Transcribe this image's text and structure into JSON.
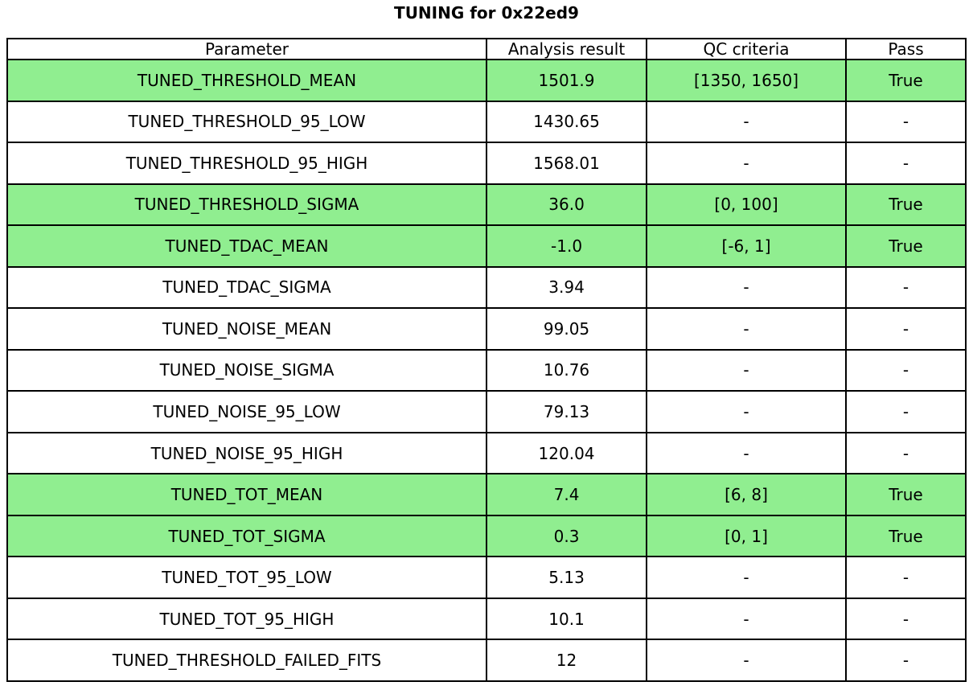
{
  "title": "TUNING for 0x22ed9",
  "colors": {
    "highlight": "#90ee90",
    "row_default": "#ffffff",
    "border": "#000000",
    "text": "#000000"
  },
  "chart_data": {
    "type": "table",
    "title": "TUNING for 0x22ed9",
    "columns": [
      "Parameter",
      "Analysis result",
      "QC criteria",
      "Pass"
    ],
    "rows": [
      {
        "parameter": "TUNED_THRESHOLD_MEAN",
        "analysis_result": "1501.9",
        "qc_criteria": "[1350, 1650]",
        "pass": "True",
        "highlighted": true
      },
      {
        "parameter": "TUNED_THRESHOLD_95_LOW",
        "analysis_result": "1430.65",
        "qc_criteria": "-",
        "pass": "-",
        "highlighted": false
      },
      {
        "parameter": "TUNED_THRESHOLD_95_HIGH",
        "analysis_result": "1568.01",
        "qc_criteria": "-",
        "pass": "-",
        "highlighted": false
      },
      {
        "parameter": "TUNED_THRESHOLD_SIGMA",
        "analysis_result": "36.0",
        "qc_criteria": "[0, 100]",
        "pass": "True",
        "highlighted": true
      },
      {
        "parameter": "TUNED_TDAC_MEAN",
        "analysis_result": "-1.0",
        "qc_criteria": "[-6, 1]",
        "pass": "True",
        "highlighted": true
      },
      {
        "parameter": "TUNED_TDAC_SIGMA",
        "analysis_result": "3.94",
        "qc_criteria": "-",
        "pass": "-",
        "highlighted": false
      },
      {
        "parameter": "TUNED_NOISE_MEAN",
        "analysis_result": "99.05",
        "qc_criteria": "-",
        "pass": "-",
        "highlighted": false
      },
      {
        "parameter": "TUNED_NOISE_SIGMA",
        "analysis_result": "10.76",
        "qc_criteria": "-",
        "pass": "-",
        "highlighted": false
      },
      {
        "parameter": "TUNED_NOISE_95_LOW",
        "analysis_result": "79.13",
        "qc_criteria": "-",
        "pass": "-",
        "highlighted": false
      },
      {
        "parameter": "TUNED_NOISE_95_HIGH",
        "analysis_result": "120.04",
        "qc_criteria": "-",
        "pass": "-",
        "highlighted": false
      },
      {
        "parameter": "TUNED_TOT_MEAN",
        "analysis_result": "7.4",
        "qc_criteria": "[6, 8]",
        "pass": "True",
        "highlighted": true
      },
      {
        "parameter": "TUNED_TOT_SIGMA",
        "analysis_result": "0.3",
        "qc_criteria": "[0, 1]",
        "pass": "True",
        "highlighted": true
      },
      {
        "parameter": "TUNED_TOT_95_LOW",
        "analysis_result": "5.13",
        "qc_criteria": "-",
        "pass": "-",
        "highlighted": false
      },
      {
        "parameter": "TUNED_TOT_95_HIGH",
        "analysis_result": "10.1",
        "qc_criteria": "-",
        "pass": "-",
        "highlighted": false
      },
      {
        "parameter": "TUNED_THRESHOLD_FAILED_FITS",
        "analysis_result": "12",
        "qc_criteria": "-",
        "pass": "-",
        "highlighted": false
      }
    ],
    "layout": {
      "column_width_percent": [
        50.0,
        16.7,
        20.8,
        12.5
      ],
      "highlighted_row_indices": [
        0,
        3,
        4,
        10,
        11
      ]
    }
  }
}
